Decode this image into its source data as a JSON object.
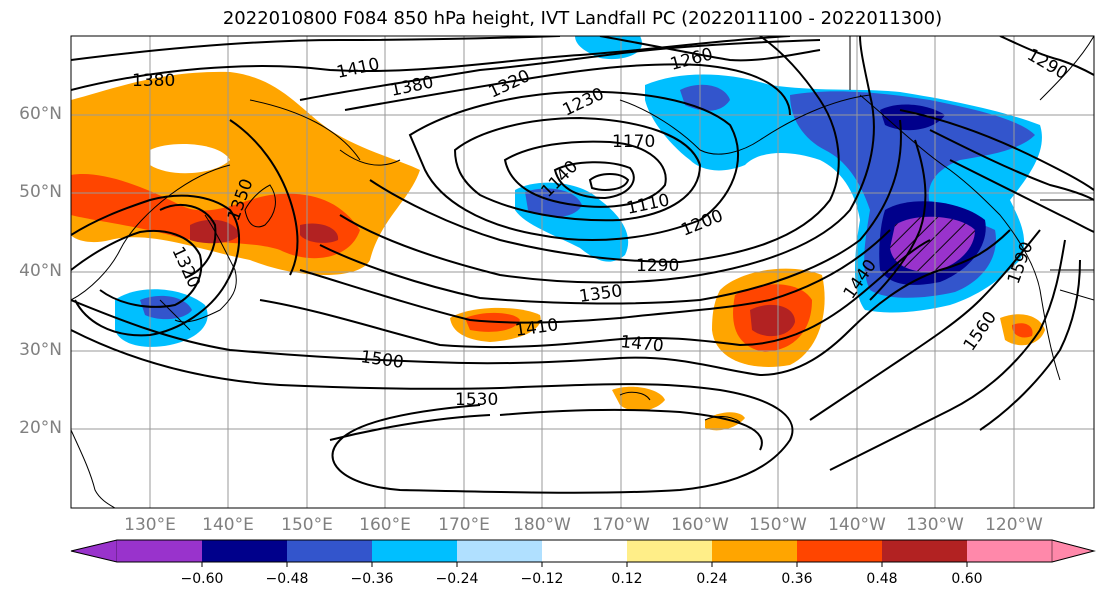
{
  "title": "2022010800 F084 850 hPa height, IVT Landfall PC (2022011100 - 2022011300)",
  "lat_labels": [
    "60°N",
    "50°N",
    "40°N",
    "30°N",
    "20°N"
  ],
  "lon_labels": [
    "130°E",
    "140°E",
    "150°E",
    "160°E",
    "170°E",
    "180°W",
    "170°W",
    "160°W",
    "150°W",
    "140°W",
    "130°W",
    "120°W"
  ],
  "contour_labels": [
    "1380",
    "1410",
    "1380",
    "1320",
    "1260",
    "1290",
    "1230",
    "1170",
    "1140",
    "1110",
    "1200",
    "1290",
    "1350",
    "1410",
    "1470",
    "1500",
    "1530",
    "1440",
    "1590",
    "1560",
    "1350",
    "1320"
  ],
  "colorbar": {
    "colors": [
      "#9933cc",
      "#00008b",
      "#3355cc",
      "#00bfff",
      "#b0e0ff",
      "#ffffff",
      "#ffee88",
      "#ffa500",
      "#ff4500",
      "#b22222",
      "#ff88aa"
    ],
    "ticks": [
      "−0.60",
      "−0.48",
      "−0.36",
      "−0.24",
      "−0.12",
      "0.12",
      "0.24",
      "0.36",
      "0.48",
      "0.60"
    ]
  }
}
